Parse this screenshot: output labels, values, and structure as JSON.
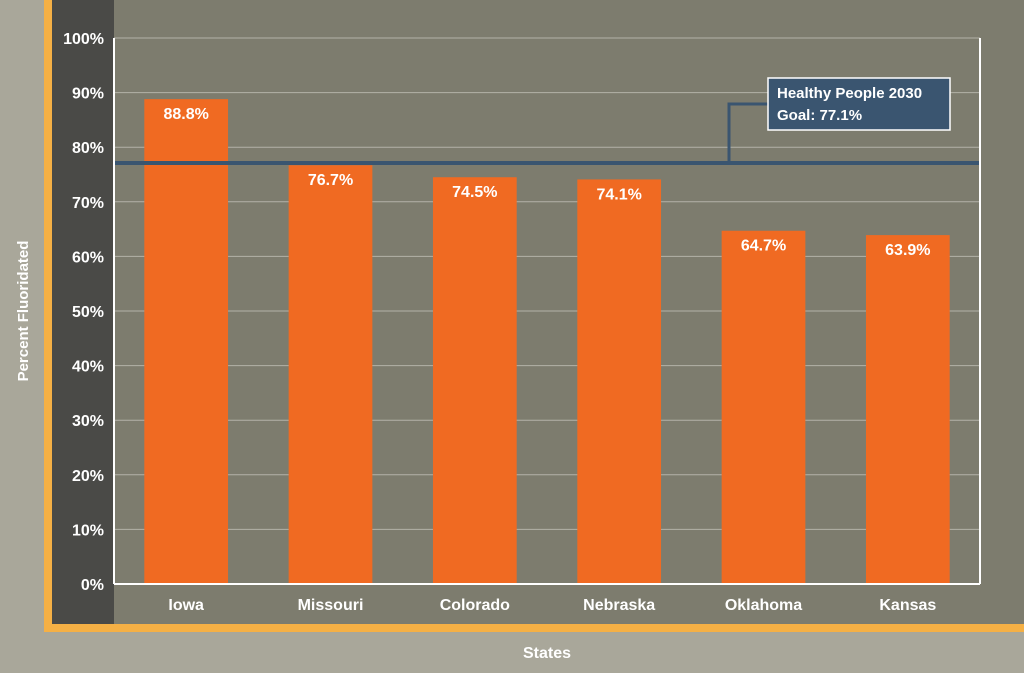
{
  "chart_data": {
    "type": "bar",
    "title": "",
    "xlabel": "States",
    "ylabel": "Percent Fluoridated",
    "categories": [
      "Iowa",
      "Missouri",
      "Colorado",
      "Nebraska",
      "Oklahoma",
      "Kansas"
    ],
    "values": [
      88.8,
      76.7,
      74.5,
      74.1,
      64.7,
      63.9
    ],
    "value_labels": [
      "88.8%",
      "76.7%",
      "74.5%",
      "74.1%",
      "64.7%",
      "63.9%"
    ],
    "ylim": [
      0,
      100
    ],
    "yticks": [
      0,
      10,
      20,
      30,
      40,
      50,
      60,
      70,
      80,
      90,
      100
    ],
    "ytick_labels": [
      "0%",
      "10%",
      "20%",
      "30%",
      "40%",
      "50%",
      "60%",
      "70%",
      "80%",
      "90%",
      "100%"
    ],
    "grid": true,
    "reference_line": {
      "value": 77.1,
      "label_line1": "Healthy People 2030",
      "label_line2": "Goal: 77.1%"
    }
  },
  "colors": {
    "page_background": "#a9a79a",
    "plot_background": "#7d7c6e",
    "axis_panel": "#4a4a47",
    "frame_accent": "#f5b045",
    "bar": "#f06a22",
    "goal_line": "#3a5570",
    "text": "#ffffff",
    "gridline": "#b3b2a8"
  }
}
